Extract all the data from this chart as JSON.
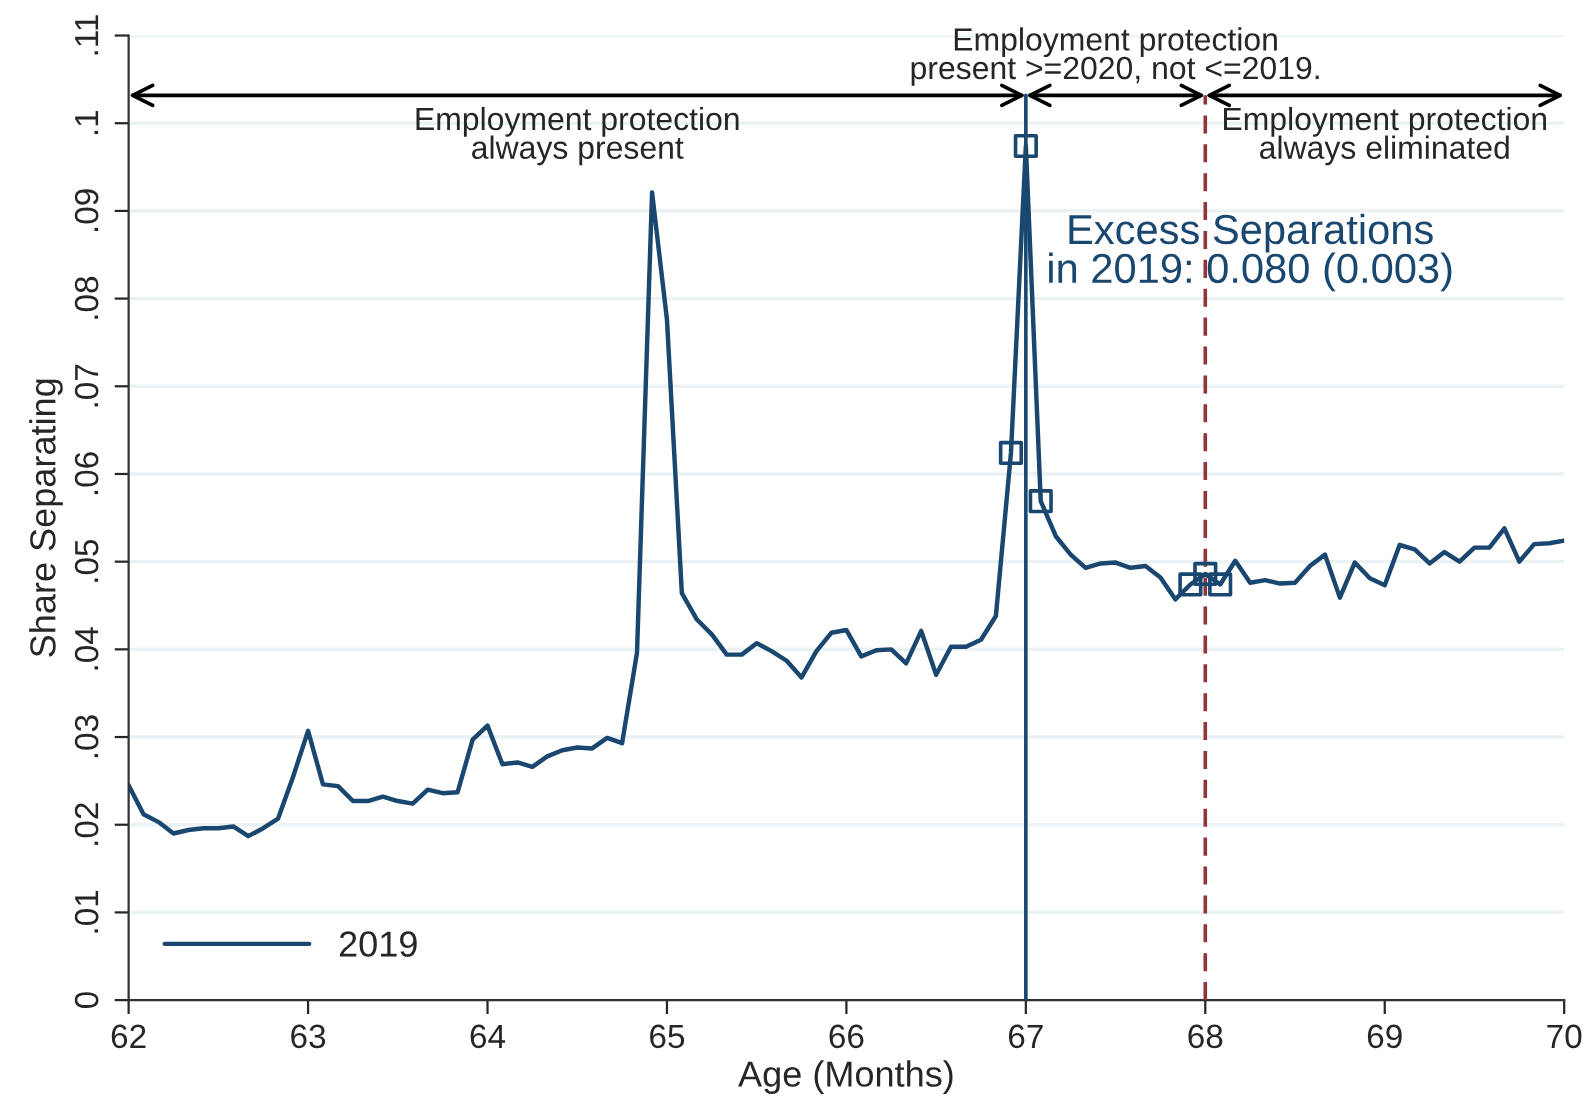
{
  "chart_data": {
    "type": "line",
    "xlabel": "Age (Months)",
    "ylabel": "Share Separating",
    "xlim": [
      62,
      70
    ],
    "xticks": [
      62,
      63,
      64,
      65,
      66,
      67,
      68,
      69,
      70
    ],
    "ylim": [
      0,
      0.11
    ],
    "yticks": [
      {
        "value": 0,
        "label": "0"
      },
      {
        "value": 0.01,
        "label": ".01"
      },
      {
        "value": 0.02,
        "label": ".02"
      },
      {
        "value": 0.03,
        "label": ".03"
      },
      {
        "value": 0.04,
        "label": ".04"
      },
      {
        "value": 0.05,
        "label": ".05"
      },
      {
        "value": 0.06,
        "label": ".06"
      },
      {
        "value": 0.07,
        "label": ".07"
      },
      {
        "value": 0.08,
        "label": ".08"
      },
      {
        "value": 0.09,
        "label": ".09"
      },
      {
        "value": 0.1,
        "label": ".1"
      },
      {
        "value": 0.11,
        "label": ".11"
      }
    ],
    "grid": "y",
    "legend": "bottom left",
    "series": [
      {
        "name": "2019",
        "color": "#1a476f",
        "marker": "none",
        "x": [
          62,
          62.083,
          62.167,
          62.25,
          62.333,
          62.417,
          62.5,
          62.583,
          62.667,
          62.75,
          62.833,
          62.917,
          63,
          63.083,
          63.167,
          63.25,
          63.333,
          63.417,
          63.5,
          63.583,
          63.667,
          63.75,
          63.833,
          63.917,
          64,
          64.083,
          64.167,
          64.25,
          64.333,
          64.417,
          64.5,
          64.583,
          64.667,
          64.75,
          64.833,
          64.917,
          65,
          65.083,
          65.167,
          65.25,
          65.333,
          65.417,
          65.5,
          65.583,
          65.667,
          65.75,
          65.833,
          65.917,
          66,
          66.083,
          66.167,
          66.25,
          66.333,
          66.417,
          66.5,
          66.583,
          66.667,
          66.75,
          66.833,
          66.917,
          67,
          67.083,
          67.167,
          67.25,
          67.333,
          67.417,
          67.5,
          67.583,
          67.667,
          67.75,
          67.833,
          67.917,
          68,
          68.083,
          68.167,
          68.25,
          68.333,
          68.417,
          68.5,
          68.583,
          68.667,
          68.75,
          68.833,
          68.917,
          69,
          69.083,
          69.167,
          69.25,
          69.333,
          69.417,
          69.5,
          69.583,
          69.667,
          69.75,
          69.833,
          69.917,
          70
        ],
        "values": [
          0.0245,
          0.0212,
          0.0203,
          0.019,
          0.0194,
          0.0196,
          0.0196,
          0.0198,
          0.0187,
          0.0196,
          0.0207,
          0.0255,
          0.0307,
          0.0246,
          0.0244,
          0.0227,
          0.0227,
          0.0232,
          0.0227,
          0.0224,
          0.024,
          0.0236,
          0.0237,
          0.0297,
          0.0313,
          0.0269,
          0.0271,
          0.0266,
          0.0278,
          0.0285,
          0.0288,
          0.0287,
          0.0299,
          0.0293,
          0.0396,
          0.0921,
          0.0776,
          0.0464,
          0.0434,
          0.0417,
          0.0394,
          0.0394,
          0.0407,
          0.0398,
          0.0387,
          0.0368,
          0.0398,
          0.0419,
          0.0422,
          0.0392,
          0.0399,
          0.04,
          0.0384,
          0.0421,
          0.0371,
          0.0403,
          0.0403,
          0.0411,
          0.0438,
          0.0624,
          0.0974,
          0.0569,
          0.0529,
          0.0508,
          0.0493,
          0.0498,
          0.0499,
          0.0493,
          0.0495,
          0.0482,
          0.0457,
          0.0474,
          0.0486,
          0.0474,
          0.0501,
          0.0476,
          0.0479,
          0.0475,
          0.0476,
          0.0495,
          0.0508,
          0.0459,
          0.0499,
          0.0481,
          0.0473,
          0.0519,
          0.0514,
          0.0498,
          0.0511,
          0.05,
          0.0516,
          0.0516,
          0.0538,
          0.05,
          0.052,
          0.0521,
          0.0524
        ]
      },
      {
        "type": "scatter",
        "color": "#1a476f",
        "marker": "square",
        "x": [
          66.917,
          67,
          67.083,
          67.917,
          68,
          68.083
        ],
        "values": [
          0.0624,
          0.0974,
          0.0569,
          0.0474,
          0.0486,
          0.0474
        ]
      }
    ],
    "ref_lines": [
      {
        "axis": "x",
        "value": 67,
        "color": "#1a476f",
        "line_style": "solid"
      },
      {
        "axis": "x",
        "value": 68,
        "color": "#90353b",
        "line_style": "dashed"
      }
    ],
    "annotations": [
      "Employment protection\nalways present",
      "Employment protection\npresent >=2020, not <=2019.",
      "Employment protection\nalways eliminated",
      "Excess Separations\nin 2019: 0.080 (0.003)"
    ]
  }
}
